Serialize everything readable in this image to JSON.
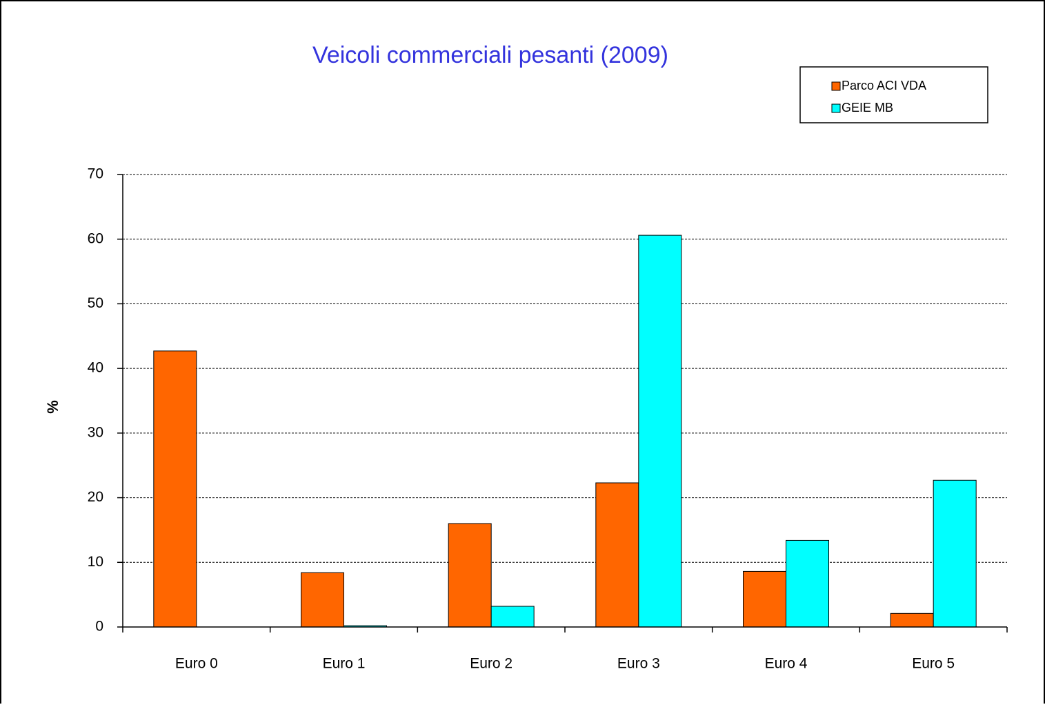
{
  "chart_data": {
    "type": "bar",
    "title": "Veicoli commerciali pesanti (2009)",
    "y_label": "%",
    "categories": [
      "Euro 0",
      "Euro 1",
      "Euro 2",
      "Euro 3",
      "Euro 4",
      "Euro 5"
    ],
    "series": [
      {
        "name": "Parco ACI VDA",
        "color": "#ff6600",
        "values": [
          42.7,
          8.4,
          16.0,
          22.3,
          8.6,
          2.1
        ]
      },
      {
        "name": "GEIE MB",
        "color": "#00ffff",
        "values": [
          0,
          0.2,
          3.2,
          60.6,
          13.4,
          22.7
        ]
      }
    ],
    "ylim": [
      0,
      70
    ],
    "yticks": [
      0,
      10,
      20,
      30,
      40,
      50,
      60,
      70
    ],
    "grid": true,
    "legend": "top-right"
  }
}
